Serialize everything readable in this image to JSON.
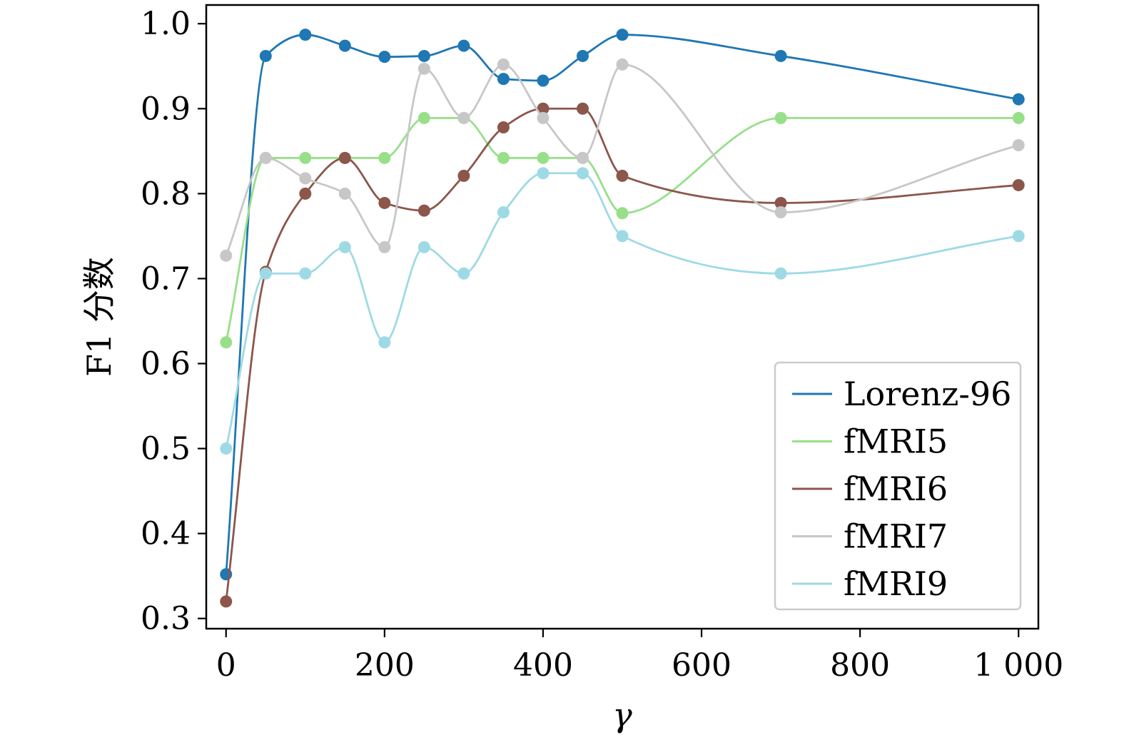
{
  "chart_data": {
    "type": "line",
    "title": "",
    "xlabel": "γ",
    "ylabel": "F1 分数",
    "xlim": [
      -25,
      1025
    ],
    "ylim": [
      0.288,
      1.022
    ],
    "xticks": [
      0,
      200,
      400,
      600,
      800,
      1000
    ],
    "xtick_labels": [
      "0",
      "200",
      "400",
      "600",
      "800",
      "1 000"
    ],
    "yticks": [
      0.3,
      0.4,
      0.5,
      0.6,
      0.7,
      0.8,
      0.9,
      1.0
    ],
    "ytick_labels": [
      "0.3",
      "0.4",
      "0.5",
      "0.6",
      "0.7",
      "0.8",
      "0.9",
      "1.0"
    ],
    "grid": false,
    "legend_position": "lower-right",
    "x": [
      0,
      50,
      100,
      150,
      200,
      250,
      300,
      350,
      400,
      450,
      500,
      700,
      1000
    ],
    "series": [
      {
        "name": "Lorenz-96",
        "color": "#1f77b4",
        "values": [
          0.352,
          0.962,
          0.987,
          0.974,
          0.961,
          0.962,
          0.974,
          0.935,
          0.933,
          0.962,
          0.987,
          0.962,
          0.911
        ]
      },
      {
        "name": "fMRI5",
        "color": "#98df8a",
        "values": [
          0.625,
          0.842,
          0.842,
          0.842,
          0.842,
          0.889,
          0.889,
          0.842,
          0.842,
          0.842,
          0.777,
          0.889,
          0.889
        ]
      },
      {
        "name": "fMRI6",
        "color": "#8c564b",
        "values": [
          0.32,
          0.708,
          0.8,
          0.842,
          0.789,
          0.78,
          0.821,
          0.878,
          0.9,
          0.9,
          0.821,
          0.789,
          0.81
        ]
      },
      {
        "name": "fMRI7",
        "color": "#c7c7c7",
        "values": [
          0.727,
          0.842,
          0.818,
          0.8,
          0.737,
          0.947,
          0.889,
          0.952,
          0.889,
          0.842,
          0.952,
          0.778,
          0.857
        ]
      },
      {
        "name": "fMRI9",
        "color": "#9edae5",
        "values": [
          0.5,
          0.706,
          0.706,
          0.737,
          0.625,
          0.737,
          0.706,
          0.778,
          0.824,
          0.824,
          0.75,
          0.706,
          0.75
        ]
      }
    ]
  }
}
